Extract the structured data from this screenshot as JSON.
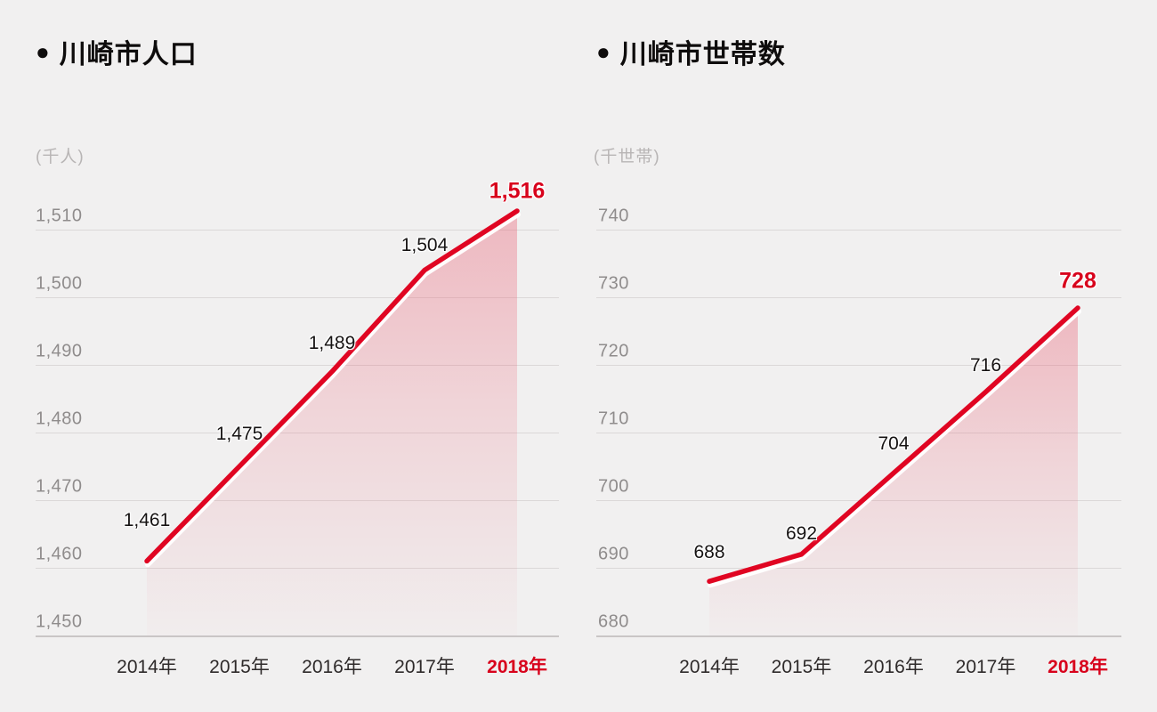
{
  "charts": [
    {
      "bullet": "●",
      "title": "川崎市人口",
      "unit": "(千人)",
      "y_labels": [
        "1,510",
        "1,500",
        "1,490",
        "1,480",
        "1,470",
        "1,460",
        "1,450"
      ],
      "x_labels": [
        "2014年",
        "2015年",
        "2016年",
        "2017年",
        "2018年"
      ],
      "point_labels": [
        "1,461",
        "1,475",
        "1,489",
        "1,504",
        "1,516"
      ]
    },
    {
      "bullet": "●",
      "title": "川崎市世帯数",
      "unit": "(千世帯)",
      "y_labels": [
        "740",
        "730",
        "720",
        "710",
        "700",
        "690",
        "680"
      ],
      "x_labels": [
        "2014年",
        "2015年",
        "2016年",
        "2017年",
        "2018年"
      ],
      "point_labels": [
        "688",
        "692",
        "704",
        "716",
        "728"
      ]
    }
  ],
  "chart_data": [
    {
      "type": "line",
      "title": "川崎市人口",
      "unit_label": "(千人)",
      "x": [
        "2014年",
        "2015年",
        "2016年",
        "2017年",
        "2018年"
      ],
      "values": [
        1461,
        1475,
        1489,
        1504,
        1516
      ],
      "ylim": [
        1450,
        1510
      ],
      "ytick_step": 10,
      "grid": true,
      "legend_position": "none",
      "highlight_last_point": true,
      "area_fill": true
    },
    {
      "type": "line",
      "title": "川崎市世帯数",
      "unit_label": "(千世帯)",
      "x": [
        "2014年",
        "2015年",
        "2016年",
        "2017年",
        "2018年"
      ],
      "values": [
        688,
        692,
        704,
        716,
        728
      ],
      "ylim": [
        680,
        740
      ],
      "ytick_step": 10,
      "grid": true,
      "legend_position": "none",
      "highlight_last_point": true,
      "area_fill": true
    }
  ],
  "colors": {
    "background": "#f1f0f0",
    "accent_red": "#d8021c",
    "line_red": "#e00522",
    "area_pink": "#ea6377",
    "gridline": "#dbd8d8",
    "axis_line": "#c9c6c6",
    "y_tick_text": "#8f8c8c",
    "x_tick_text": "#2e2a2a",
    "value_text": "#161313",
    "title_text": "#0e0c0c",
    "unit_text": "#b8b5b5"
  }
}
